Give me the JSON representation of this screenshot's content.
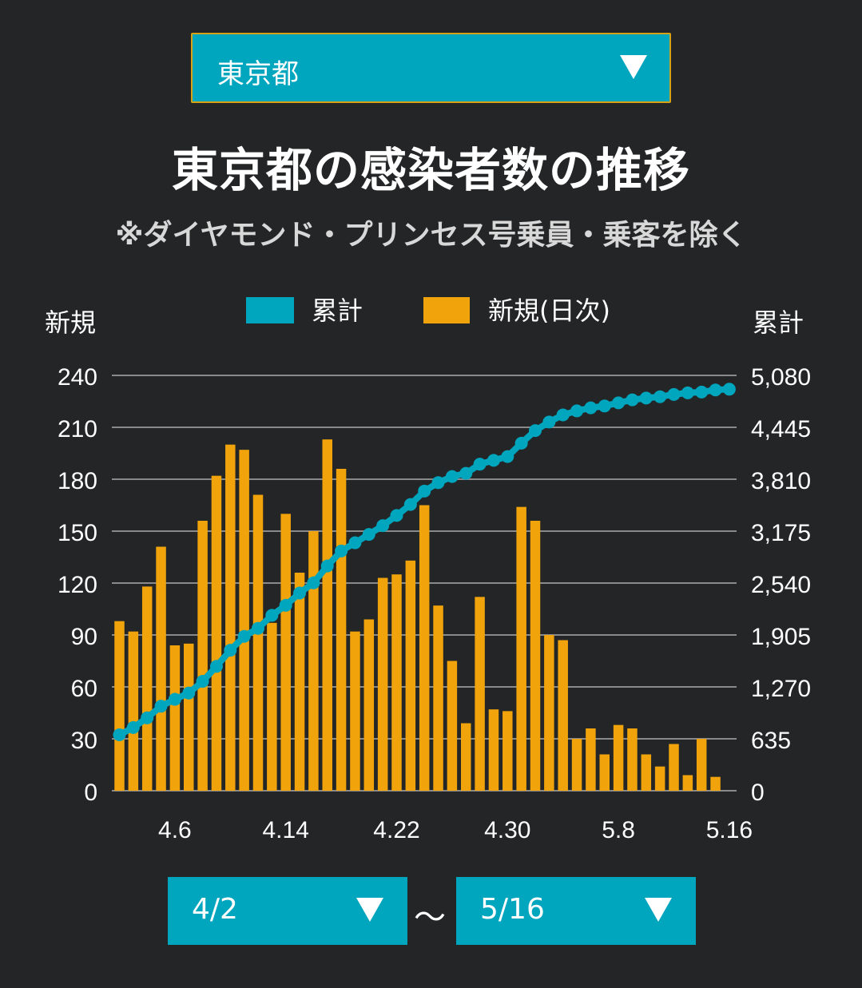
{
  "region_select": {
    "value": "東京都"
  },
  "title": "東京都の感染者数の推移",
  "subtitle": "※ダイヤモンド・プリンセス号乗員・乗客を除く",
  "date_range": {
    "start": "4/2",
    "separator": "～",
    "end": "5/16"
  },
  "colors": {
    "background": "#232526",
    "cumulative": "#00a5be",
    "new": "#f0a30a",
    "grid": "#8a8a8a"
  },
  "icons": {
    "dropdown": "dropdown-triangle-icon"
  },
  "chart_data": {
    "type": "bar",
    "left_axis_label": "新規",
    "right_axis_label": "累計",
    "legend": {
      "position": "top-center"
    },
    "grid": true,
    "categories": [
      "4.2",
      "4.3",
      "4.4",
      "4.5",
      "4.6",
      "4.7",
      "4.8",
      "4.9",
      "4.10",
      "4.11",
      "4.12",
      "4.13",
      "4.14",
      "4.15",
      "4.16",
      "4.17",
      "4.18",
      "4.19",
      "4.20",
      "4.21",
      "4.22",
      "4.23",
      "4.24",
      "4.25",
      "4.26",
      "4.27",
      "4.28",
      "4.29",
      "4.30",
      "5.1",
      "5.2",
      "5.3",
      "5.4",
      "5.5",
      "5.6",
      "5.7",
      "5.8",
      "5.9",
      "5.10",
      "5.11",
      "5.12",
      "5.13",
      "5.14",
      "5.15",
      "5.16"
    ],
    "x_tick_labels": [
      "4.6",
      "4.14",
      "4.22",
      "4.30",
      "5.8",
      "5.16"
    ],
    "left_axis": {
      "ylim": [
        0,
        240
      ],
      "ticks": [
        "0",
        "30",
        "60",
        "90",
        "120",
        "150",
        "180",
        "210",
        "240"
      ]
    },
    "right_axis": {
      "ylim": [
        0,
        5080
      ],
      "ticks": [
        "0",
        "635",
        "1,270",
        "1,905",
        "2,540",
        "3,175",
        "3,810",
        "4,445",
        "5,080"
      ]
    },
    "series": [
      {
        "name": "累計",
        "type": "line",
        "axis": "right",
        "values": [
          684,
          773,
          891,
          1034,
          1118,
          1194,
          1338,
          1521,
          1718,
          1888,
          1986,
          2145,
          2268,
          2418,
          2543,
          2749,
          2932,
          3033,
          3135,
          3242,
          3367,
          3501,
          3665,
          3768,
          3843,
          3882,
          3994,
          4041,
          4087,
          4251,
          4405,
          4510,
          4597,
          4646,
          4683,
          4706,
          4744,
          4781,
          4803,
          4819,
          4847,
          4866,
          4876,
          4902,
          4911
        ]
      },
      {
        "name": "新規(日次)",
        "type": "bar",
        "axis": "left",
        "values": [
          98,
          92,
          118,
          141,
          84,
          85,
          156,
          182,
          200,
          197,
          171,
          97,
          160,
          126,
          150,
          203,
          186,
          92,
          99,
          123,
          125,
          133,
          165,
          107,
          75,
          39,
          112,
          47,
          46,
          164,
          156,
          90,
          87,
          30,
          36,
          21,
          38,
          36,
          21,
          14,
          27,
          9,
          30,
          8,
          0
        ]
      }
    ]
  }
}
